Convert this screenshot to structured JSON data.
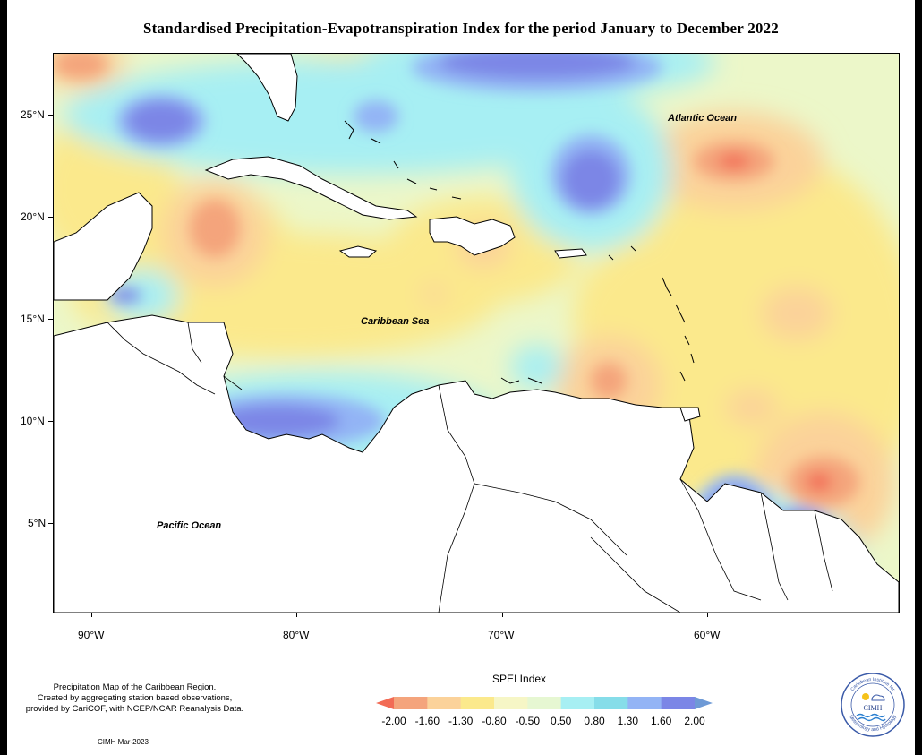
{
  "title": "Standardised Precipitation-Evapotranspiration Index for the period January to December 2022",
  "map": {
    "ocean_labels": {
      "atlantic": "Atlantic Ocean",
      "caribbean": "Caribbean Sea",
      "pacific": "Pacific Ocean"
    },
    "lat_labels": [
      "25°N",
      "20°N",
      "15°N",
      "10°N",
      "5°N"
    ],
    "lon_labels": [
      "90°W",
      "80°W",
      "70°W",
      "60°W"
    ]
  },
  "legend": {
    "title": "SPEI Index",
    "values": [
      "-2.00",
      "-1.60",
      "-1.30",
      "-0.80",
      "-0.50",
      "0.50",
      "0.80",
      "1.30",
      "1.60",
      "2.00"
    ],
    "colors": [
      "#f26b55",
      "#f4a47c",
      "#fbd29a",
      "#fbe98c",
      "#f6f6c6",
      "#e6f7d2",
      "#a7eff3",
      "#86dde9",
      "#93b4f5",
      "#7b86e6",
      "#6e9ad6"
    ]
  },
  "footnote": {
    "line1": "Precipitation Map of the Caribbean Region.",
    "line2": "Created by aggregating station based observations,",
    "line3": "provided by CariCOF, with NCEP/NCAR Reanalysis Data."
  },
  "credit": "CIMH Mar-2023",
  "logo": {
    "name": "CIMH",
    "ring_text_top": "Caribbean Institute for",
    "ring_text_bottom": "Meteorology and Hydrology"
  }
}
